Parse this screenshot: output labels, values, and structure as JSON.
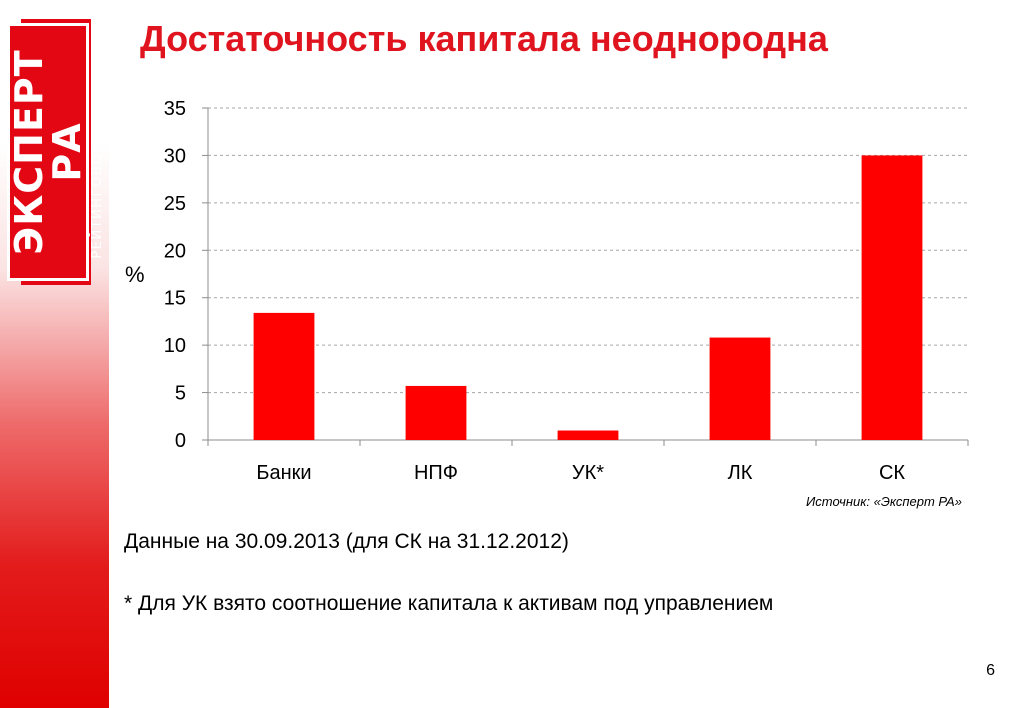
{
  "logo": {
    "text": "ЭКСПЕРТ РА",
    "subtitle": "РЕЙТИНГОВОЕ АГЕНТСТВО"
  },
  "slide": {
    "title": "Достаточность капитала неоднородна",
    "source": "Источник: «Эксперт РА»",
    "note_date": "Данные на 30.09.2013 (для СК на 31.12.2012)",
    "note_uk": "* Для УК взято соотношение капитала к активам под управлением",
    "page_number": "6"
  },
  "colors": {
    "accent": "#e0141e",
    "bar": "#ff0000",
    "grid": "#a6a6a6"
  },
  "chart_data": {
    "type": "bar",
    "title": "",
    "xlabel": "",
    "ylabel": "%",
    "categories": [
      "Банки",
      "НПФ",
      "УК*",
      "ЛК",
      "СК"
    ],
    "values": [
      13.4,
      5.7,
      1.0,
      10.8,
      30.0
    ],
    "ylim": [
      0,
      35
    ],
    "yticks": [
      "0",
      "5",
      "10",
      "15",
      "20",
      "25",
      "30",
      "35"
    ],
    "grid": true,
    "legend": "none"
  }
}
